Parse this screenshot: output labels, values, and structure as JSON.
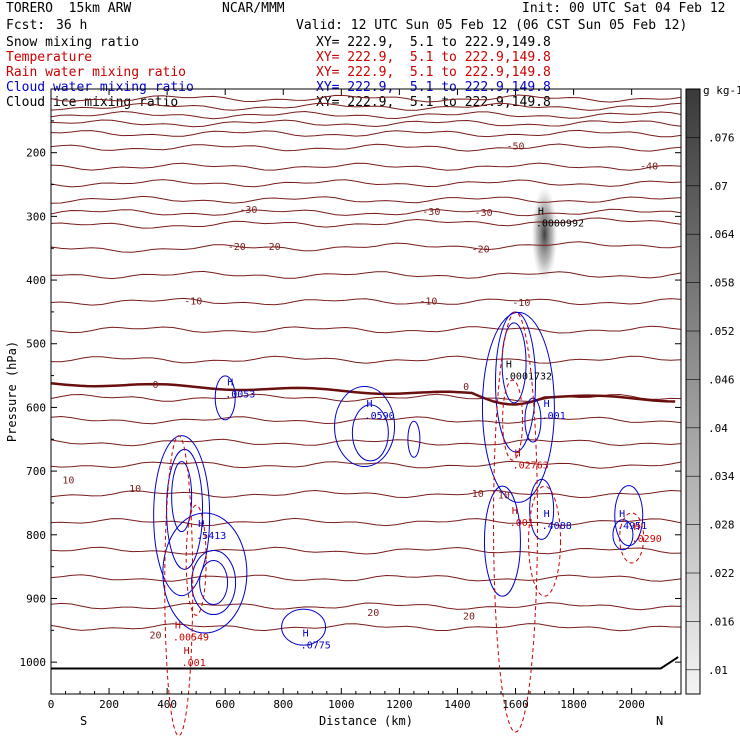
{
  "header": {
    "model": "TORERO  15km ARW",
    "center": "NCAR/MMM",
    "init": "Init: 00 UTC Sat 04 Feb 12",
    "fcst_label": "Fcst:",
    "fcst_value": "36 h",
    "valid": "Valid: 12 UTC Sun 05 Feb 12 (06 CST Sun 05 Feb 12)"
  },
  "fields": [
    {
      "label": "Snow mixing ratio",
      "xy": "XY= 222.9,  5.1 to 222.9,149.8",
      "color": "#000000"
    },
    {
      "label": "Temperature",
      "xy": "XY= 222.9,  5.1 to 222.9,149.8",
      "color": "#cc0000"
    },
    {
      "label": "Rain water mixing ratio",
      "xy": "XY= 222.9,  5.1 to 222.9,149.8",
      "color": "#cc0000"
    },
    {
      "label": "Cloud water mixing ratio",
      "xy": "XY= 222.9,  5.1 to 222.9,149.8",
      "color": "#0000cc"
    },
    {
      "label": "Cloud ice mixing ratio",
      "xy": "XY= 222.9,  5.1 to 222.9,149.8",
      "color": "#000000"
    }
  ],
  "chart_data": {
    "type": "cross-section contour",
    "xlabel": "Distance (km)",
    "ylabel": "Pressure (hPa)",
    "xlim": [
      0,
      2170
    ],
    "ylim": [
      1050,
      100
    ],
    "x_ticks": [
      0,
      200,
      400,
      600,
      800,
      1000,
      1200,
      1400,
      1600,
      1800,
      2000
    ],
    "y_ticks": [
      200,
      300,
      400,
      500,
      600,
      700,
      800,
      900,
      1000
    ],
    "left_end": "S",
    "right_end": "N",
    "colorbar": {
      "unit": "g kg-1",
      "ticks": [
        ".01",
        ".016",
        ".022",
        ".028",
        ".034",
        ".04",
        ".046",
        ".052",
        ".058",
        ".064",
        ".07",
        ".076"
      ]
    },
    "temperature_labels": [
      {
        "text": "-50",
        "x": 1600,
        "p": 190
      },
      {
        "text": "-40",
        "x": 2060,
        "p": 222
      },
      {
        "text": "-30",
        "x": 680,
        "p": 290
      },
      {
        "text": "-30",
        "x": 1310,
        "p": 293
      },
      {
        "text": "-30",
        "x": 1490,
        "p": 295
      },
      {
        "text": "-20",
        "x": 640,
        "p": 348
      },
      {
        "text": "-20",
        "x": 760,
        "p": 348
      },
      {
        "text": "-20",
        "x": 1480,
        "p": 352
      },
      {
        "text": "-10",
        "x": 490,
        "p": 434
      },
      {
        "text": "-10",
        "x": 1300,
        "p": 434
      },
      {
        "text": "-10",
        "x": 1620,
        "p": 436
      },
      {
        "text": "0",
        "x": 360,
        "p": 565
      },
      {
        "text": "0",
        "x": 1430,
        "p": 568
      },
      {
        "text": "10",
        "x": 60,
        "p": 715
      },
      {
        "text": "10",
        "x": 290,
        "p": 728
      },
      {
        "text": "10",
        "x": 1470,
        "p": 736
      },
      {
        "text": "10",
        "x": 1560,
        "p": 738
      },
      {
        "text": "20",
        "x": 1110,
        "p": 923
      },
      {
        "text": "20",
        "x": 1440,
        "p": 928
      },
      {
        "text": "20",
        "x": 360,
        "p": 958
      }
    ],
    "maxima": [
      {
        "field": "Cloud ice mixing ratio",
        "value": ".0000992",
        "x": 1670,
        "p": 310
      },
      {
        "field": "Cloud ice mixing ratio",
        "value": ".0001732",
        "x": 1560,
        "p": 550
      },
      {
        "field": "Cloud water mixing ratio",
        "value": ".0053",
        "x": 600,
        "p": 578
      },
      {
        "field": "Cloud water mixing ratio",
        "value": ".0590",
        "x": 1080,
        "p": 612
      },
      {
        "field": "Cloud water mixing ratio",
        "value": ".001",
        "x": 1690,
        "p": 612
      },
      {
        "field": "Rain water mixing ratio",
        "value": ".02763",
        "x": 1590,
        "p": 690
      },
      {
        "field": "Rain water mixing ratio",
        "value": ".001",
        "x": 1580,
        "p": 780
      },
      {
        "field": "Cloud water mixing ratio",
        "value": ".4088",
        "x": 1690,
        "p": 785
      },
      {
        "field": "Cloud water mixing ratio",
        "value": ".4951",
        "x": 1950,
        "p": 785
      },
      {
        "field": "Rain water mixing ratio",
        "value": ".0290",
        "x": 2000,
        "p": 805
      },
      {
        "field": "Cloud water mixing ratio",
        "value": ".5413",
        "x": 500,
        "p": 800
      },
      {
        "field": "Rain water mixing ratio",
        "value": ".00549",
        "x": 420,
        "p": 960
      },
      {
        "field": "Cloud water mixing ratio",
        "value": ".0775",
        "x": 860,
        "p": 972
      },
      {
        "field": "Rain water mixing ratio",
        "value": ".001",
        "x": 450,
        "p": 1000
      }
    ]
  }
}
